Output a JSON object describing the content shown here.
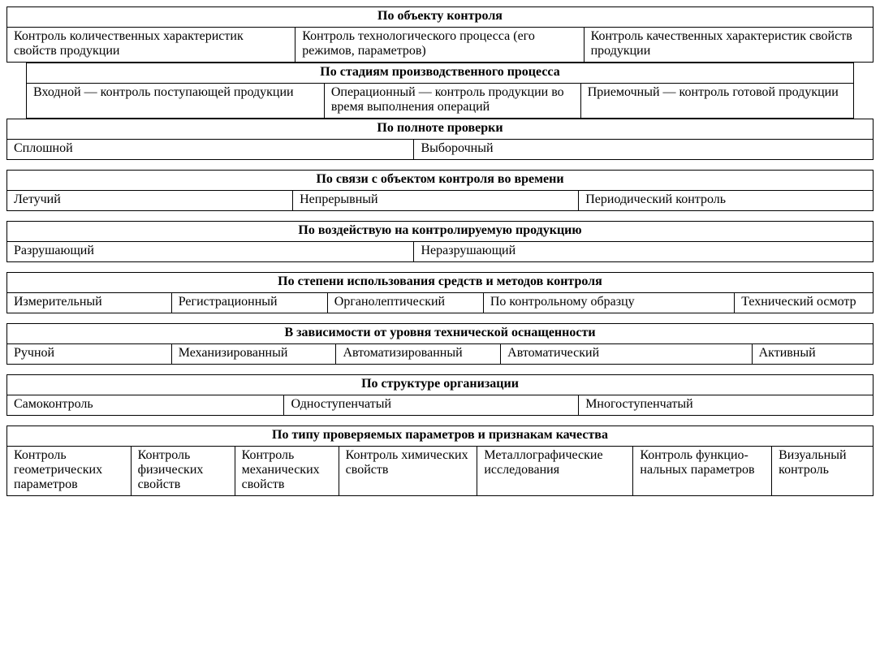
{
  "font": {
    "family": "Times New Roman",
    "base_size_pt": 16,
    "header_weight": "bold"
  },
  "colors": {
    "border": "#000000",
    "text": "#000000",
    "background": "#ffffff"
  },
  "blocks": [
    {
      "id": "object",
      "indent": false,
      "gap_after": false,
      "header": "По объекту контроля",
      "cells": [
        "Контроль количественных характеристик свойств продук­ции",
        "Контроль технологического процесса (его режимов, параметров)",
        "Контроль качественных характеристик свойств продукции"
      ]
    },
    {
      "id": "stages",
      "indent": true,
      "gap_after": false,
      "header": "По стадиям производственного процесса",
      "cells": [
        "Входной — контроль поступающей продукции",
        "Операционный — контроль продукции во время выполнения операций",
        "Приемочный — контроль готовой продукции"
      ]
    },
    {
      "id": "completeness",
      "indent": false,
      "gap_after": true,
      "header": "По полноте проверки",
      "cells": [
        "Сплошной",
        "Выборочный"
      ]
    },
    {
      "id": "time_relation",
      "indent": false,
      "gap_after": true,
      "header": "По связи с объектом контроля во времени",
      "cells": [
        "Летучий",
        "Непрерывный",
        "Периодический контроль"
      ]
    },
    {
      "id": "impact",
      "indent": false,
      "gap_after": true,
      "header": "По воздействую на контролируемую продукцию",
      "cells": [
        "Разрушающий",
        "Неразрушающий"
      ]
    },
    {
      "id": "means",
      "indent": false,
      "gap_after": true,
      "header": "По степени использования средств и методов контроля",
      "cells": [
        "Измерительный",
        "Регистрацион­ный",
        "Органолепти­ческий",
        "По контрольному образцу",
        "Технический осмотр"
      ]
    },
    {
      "id": "equipment",
      "indent": false,
      "gap_after": true,
      "header": "В зависимости от уровня технической оснащенности",
      "cells": [
        "Ручной",
        "Механизирован­ный",
        "Автоматизиро­ванный",
        "Автоматический",
        "Активный"
      ]
    },
    {
      "id": "org_structure",
      "indent": false,
      "gap_after": true,
      "header": "По структуре организации",
      "cells": [
        "Самоконтроль",
        "Одноступенчатый",
        "Многоступенчатый"
      ]
    },
    {
      "id": "parameters",
      "indent": false,
      "gap_after": false,
      "header": "По типу проверяемых параметров и признакам качества",
      "cells": [
        "Контроль геометри­ческих параметров",
        "Контроль физичес­ких свойств",
        "Контроль механи­ческих свойств",
        "Контроль химических свойств",
        "Металлографи­ческие исследования",
        "Контроль функцио­нальных параметров",
        "Визуаль­ный контроль"
      ]
    }
  ],
  "col_widths": {
    "object": [
      "33.3%",
      "33.3%",
      "33.4%"
    ],
    "stages": [
      "36%",
      "31%",
      "33%"
    ],
    "completeness": [
      "47%",
      "53%"
    ],
    "time_relation": [
      "33%",
      "33%",
      "34%"
    ],
    "impact": [
      "47%",
      "53%"
    ],
    "means": [
      "19%",
      "18%",
      "18%",
      "29%",
      "16%"
    ],
    "equipment": [
      "19%",
      "19%",
      "19%",
      "29%",
      "14%"
    ],
    "org_structure": [
      "32%",
      "34%",
      "34%"
    ],
    "parameters": [
      "14.3%",
      "12%",
      "12%",
      "16%",
      "18%",
      "16%",
      "11.7%"
    ]
  }
}
